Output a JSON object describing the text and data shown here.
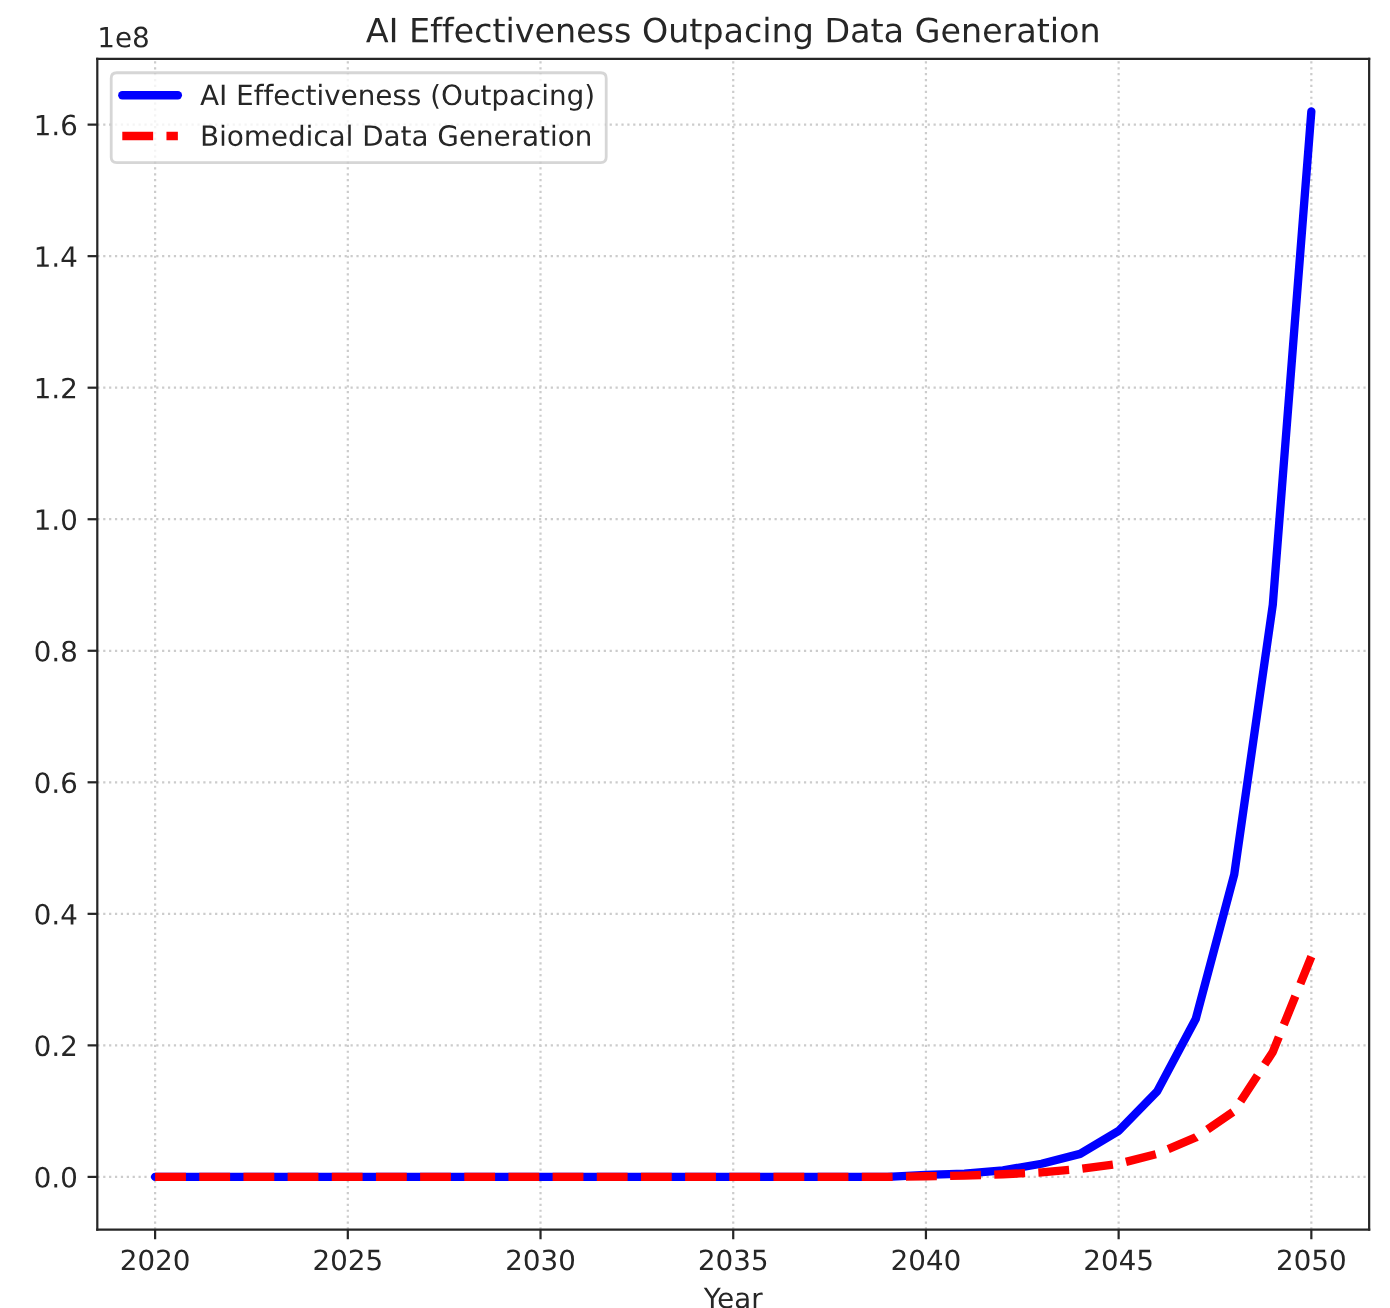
{
  "chart_data": {
    "type": "line",
    "title": "AI Effectiveness Outpacing Data Generation",
    "xlabel": "Year",
    "annotations": [
      "1e8"
    ],
    "x": [
      2020,
      2021,
      2022,
      2023,
      2024,
      2025,
      2026,
      2027,
      2028,
      2029,
      2030,
      2031,
      2032,
      2033,
      2034,
      2035,
      2036,
      2037,
      2038,
      2039,
      2040,
      2041,
      2042,
      2043,
      2044,
      2045,
      2046,
      2047,
      2048,
      2049,
      2050
    ],
    "series": [
      {
        "name": "AI Effectiveness (Outpacing)",
        "color": "#0000ff",
        "line_style": "solid",
        "values": [
          0,
          0,
          0,
          0,
          0,
          0,
          0,
          0,
          0,
          0,
          0,
          0,
          0,
          0,
          0,
          0,
          0,
          0,
          0,
          0,
          0.003,
          0.005,
          0.01,
          0.02,
          0.035,
          0.07,
          0.13,
          0.24,
          0.46,
          0.87,
          1.62
        ]
      },
      {
        "name": "Biomedical Data Generation",
        "color": "#ff0000",
        "line_style": "dashed",
        "values": [
          0,
          0,
          0,
          0,
          0,
          0,
          0,
          0,
          0,
          0,
          0,
          0,
          0,
          0,
          0,
          0,
          0,
          0,
          0,
          0,
          0.001,
          0.002,
          0.004,
          0.007,
          0.012,
          0.02,
          0.035,
          0.06,
          0.1,
          0.19,
          0.335
        ]
      }
    ],
    "xlim": [
      2018.5,
      2051.5
    ],
    "xticks": [
      2020,
      2025,
      2030,
      2035,
      2040,
      2045,
      2050
    ],
    "ylim": [
      -0.08,
      1.7
    ],
    "yticks": [
      {
        "value": 0,
        "label": "0.0"
      },
      0.2,
      0.4,
      0.6,
      0.8,
      {
        "value": 1,
        "label": "1.0"
      },
      1.2,
      1.4,
      1.6
    ],
    "grid": true,
    "legend": "top left"
  }
}
